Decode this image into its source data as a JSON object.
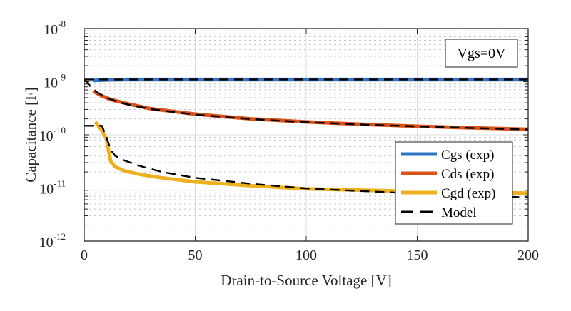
{
  "chart_data": {
    "type": "line",
    "title": "",
    "xlabel": "Drain-to-Source Voltage [V]",
    "ylabel": "Capacitance [F]",
    "xlim": [
      0,
      200
    ],
    "ylim": [
      1e-12,
      1e-08
    ],
    "yscale": "log",
    "grid": true,
    "minor_grid": true,
    "x_ticks": [
      0,
      50,
      100,
      150,
      200
    ],
    "x_tick_labels": [
      "0",
      "50",
      "100",
      "150",
      "200"
    ],
    "y_ticks": [
      1e-12,
      1e-11,
      1e-10,
      1e-09,
      1e-08
    ],
    "y_tick_labels": [
      {
        "base": "10",
        "exp": "-12"
      },
      {
        "base": "10",
        "exp": "-11"
      },
      {
        "base": "10",
        "exp": "-10"
      },
      {
        "base": "10",
        "exp": "-9"
      },
      {
        "base": "10",
        "exp": "-8"
      }
    ],
    "legend_position": "lower-right",
    "annotation": "Vgs=0V",
    "series": [
      {
        "name": "Cgs (exp)",
        "color": "#2e75c4",
        "style": "solid",
        "width": "thick",
        "x": [
          4,
          10,
          20,
          50,
          100,
          150,
          200
        ],
        "y": [
          1.05e-09,
          1.08e-09,
          1.1e-09,
          1.1e-09,
          1.1e-09,
          1.1e-09,
          1.1e-09
        ]
      },
      {
        "name": "Cds (exp)",
        "color": "#d95319",
        "style": "solid",
        "width": "thick",
        "x": [
          4,
          8,
          12,
          20,
          30,
          50,
          75,
          100,
          125,
          150,
          175,
          200
        ],
        "y": [
          6.6e-10,
          5.4e-10,
          4.6e-10,
          3.8e-10,
          3.1e-10,
          2.45e-10,
          2e-10,
          1.75e-10,
          1.58e-10,
          1.45e-10,
          1.35e-10,
          1.27e-10
        ]
      },
      {
        "name": "Cgd (exp)",
        "color": "#edb120",
        "style": "solid",
        "width": "thick",
        "x": [
          5,
          8,
          10,
          11,
          12,
          14,
          18,
          25,
          35,
          50,
          75,
          100,
          150,
          200
        ],
        "y": [
          1.75e-10,
          1.2e-10,
          8.5e-11,
          5e-11,
          3.1e-11,
          2.5e-11,
          2.1e-11,
          1.8e-11,
          1.55e-11,
          1.3e-11,
          1.1e-11,
          9.6e-12,
          8.6e-12,
          8e-12
        ]
      },
      {
        "name": "Model",
        "color": "#000000",
        "style": "dashed",
        "width": "medium",
        "segments": [
          {
            "x": [
              0,
              4,
              10,
              20,
              50,
              100,
              150,
              200
            ],
            "y": [
              1.1e-09,
              1.1e-09,
              1.1e-09,
              1.1e-09,
              1.1e-09,
              1.1e-09,
              1.1e-09,
              1.1e-09
            ]
          },
          {
            "x": [
              0,
              3,
              6,
              10,
              15,
              20,
              30,
              50,
              75,
              100,
              125,
              150,
              175,
              200
            ],
            "y": [
              1.1e-09,
              8e-10,
              6.2e-10,
              5e-10,
              4.2e-10,
              3.7e-10,
              3.05e-10,
              2.4e-10,
              1.98e-10,
              1.73e-10,
              1.56e-10,
              1.44e-10,
              1.34e-10,
              1.26e-10
            ]
          },
          {
            "x": [
              0,
              8,
              10,
              12,
              14,
              18,
              25,
              35,
              50,
              75,
              100,
              150,
              200
            ],
            "y": [
              1.48e-10,
              1.48e-10,
              9e-11,
              5.2e-11,
              4e-11,
              3.3e-11,
              2.6e-11,
              2e-11,
              1.55e-11,
              1.2e-11,
              9.8e-12,
              7.8e-12,
              6.6e-12
            ]
          }
        ]
      }
    ]
  }
}
